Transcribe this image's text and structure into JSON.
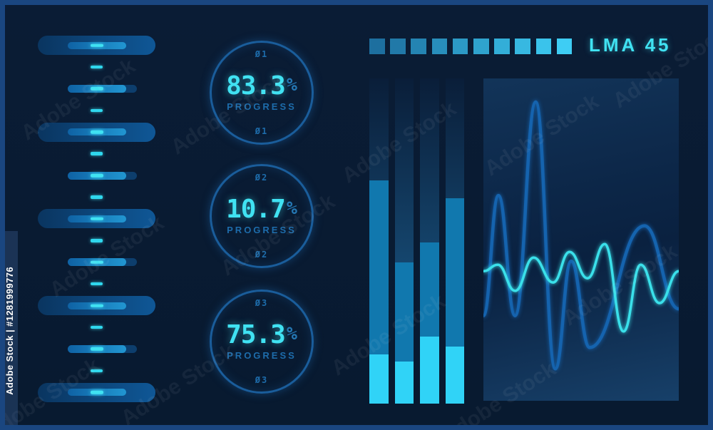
{
  "colors": {
    "background": "#0a1b33",
    "frame_border": "#1a4680",
    "accent_cyan": "#40e2f2",
    "label_blue": "#1d6cab",
    "ring_blue": "#1a5d9b",
    "percent_sign_blue": "#2577b3",
    "pill_dark_start": "#0a3560",
    "pill_dark_end": "#0f5796",
    "pill_light_start": "#0f62a4",
    "pill_light_end": "#2196d1",
    "pill_tail": "#0d3e6d"
  },
  "watermark": {
    "side_label": "Adobe Stock | #1281999776",
    "diagonal_label": "Adobe Stock"
  },
  "header": {
    "unit_label": "LMA 45",
    "block_colors": [
      "#1d6f9f",
      "#2179a8",
      "#2484b2",
      "#288ebb",
      "#2c99c5",
      "#2fa3ce",
      "#33aed8",
      "#37b8e1",
      "#3ac3eb",
      "#3ecdf4"
    ]
  },
  "left_timeline": {
    "items": [
      "lg",
      "tick",
      "sm",
      "tick",
      "lg",
      "tick",
      "sm",
      "tick",
      "lg",
      "tick",
      "sm",
      "tick",
      "lg",
      "tick",
      "sm",
      "tick",
      "lg"
    ]
  },
  "progress_circles": [
    {
      "top_label": "Ø1",
      "value": "83.3",
      "unit": "%",
      "caption": "PROGRESS",
      "bottom_label": "Ø1"
    },
    {
      "top_label": "Ø2",
      "value": "10.7",
      "unit": "%",
      "caption": "PROGRESS",
      "bottom_label": "Ø2"
    },
    {
      "top_label": "Ø3",
      "value": "75.3",
      "unit": "%",
      "caption": "PROGRESS",
      "bottom_label": "Ø3"
    }
  ],
  "chart_data": [
    {
      "type": "bar",
      "title": "equalizer-bars",
      "categories": [
        "1",
        "2",
        "3",
        "4"
      ],
      "series": [
        {
          "name": "fill_percent",
          "values": [
            68.6,
            43.4,
            49.6,
            63.2
          ]
        },
        {
          "name": "highlight_percent",
          "values": [
            15.1,
            13.0,
            20.7,
            17.5
          ]
        }
      ],
      "ylim": [
        0,
        100
      ],
      "legend": "none",
      "grid": false,
      "colors": {
        "track_top": "#0a1e39",
        "track_bottom": "#1d6496",
        "fill": "#1178ae",
        "highlight": "#30d3f7"
      }
    },
    {
      "type": "line",
      "title": "waveform-monitor",
      "xlim": [
        0,
        100
      ],
      "ylim": [
        0,
        100
      ],
      "legend": "none",
      "grid": false,
      "series": [
        {
          "name": "wave-blue",
          "color": "#1563ae",
          "width": 4.5,
          "x": [
            0,
            7.7,
            16.2,
            26.8,
            36.8,
            44.9,
            54.4,
            82.4,
            100
          ],
          "y": [
            26.4,
            63.7,
            26.4,
            92.7,
            9.9,
            43.3,
            16.5,
            54.3,
            28.5
          ]
        },
        {
          "name": "wave-cyan",
          "color": "#3ae0ea",
          "width": 3.5,
          "x": [
            0,
            7.4,
            16.2,
            25.7,
            35.7,
            44.1,
            53.3,
            62.1,
            71.7,
            80.5,
            90.1,
            100
          ],
          "y": [
            40.2,
            42.2,
            34.1,
            44.4,
            36.7,
            46.2,
            38.0,
            48.6,
            21.5,
            42.2,
            30.3,
            40.2
          ]
        }
      ]
    }
  ]
}
